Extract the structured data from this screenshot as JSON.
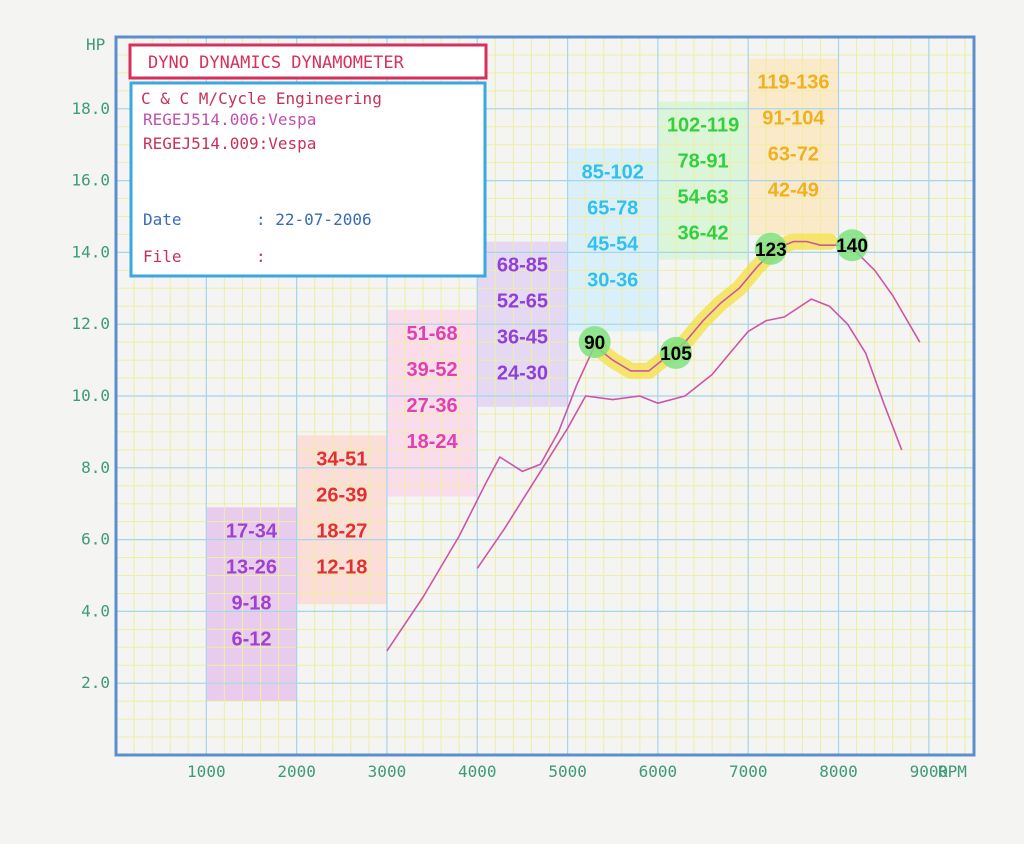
{
  "chart_data": {
    "type": "line",
    "title": "DYNO DYNAMICS DYNAMOMETER",
    "xlabel": "RPM",
    "ylabel": "HP",
    "xlim": [
      0,
      9500
    ],
    "ylim": [
      0,
      20
    ],
    "x_ticks": [
      "1000",
      "2000",
      "3000",
      "4000",
      "5000",
      "6000",
      "7000",
      "8000",
      "9000"
    ],
    "y_ticks": [
      "2.0",
      "4.0",
      "6.0",
      "8.0",
      "10.0",
      "12.0",
      "14.0",
      "16.0",
      "18.0"
    ],
    "grid": true,
    "series": [
      {
        "color": "#cc55aa",
        "x": [
          3000,
          3400,
          3800,
          4100,
          4250,
          4500,
          4700,
          4900,
          5100,
          5300,
          5500,
          5700,
          5900,
          6100,
          6300,
          6500,
          6700,
          6900,
          7100,
          7300,
          7500,
          7650,
          7800,
          8000,
          8200,
          8400,
          8600,
          8900
        ],
        "values": [
          2.9,
          4.4,
          6.1,
          7.6,
          8.3,
          7.9,
          8.1,
          9.0,
          10.3,
          11.4,
          11.0,
          10.7,
          10.7,
          11.1,
          11.5,
          12.1,
          12.6,
          13.0,
          13.6,
          14.1,
          14.3,
          14.3,
          14.2,
          14.2,
          14.0,
          13.5,
          12.8,
          11.5
        ]
      },
      {
        "color": "#cc55aa",
        "x": [
          4000,
          4300,
          4700,
          5000,
          5200,
          5500,
          5800,
          6000,
          6300,
          6600,
          6800,
          7000,
          7200,
          7400,
          7700,
          7900,
          8100,
          8300,
          8500,
          8700
        ],
        "values": [
          5.2,
          6.3,
          7.9,
          9.1,
          10.0,
          9.9,
          10.0,
          9.8,
          10.0,
          10.6,
          11.2,
          11.8,
          12.1,
          12.2,
          12.7,
          12.5,
          12.0,
          11.2,
          9.8,
          8.5
        ]
      }
    ],
    "highlight": {
      "color": "#f5e040",
      "x": [
        5300,
        5500,
        5700,
        5900,
        6100,
        6300,
        6500,
        6700,
        6900,
        7100,
        7300,
        7500,
        7700,
        7900
      ],
      "values": [
        11.4,
        11.0,
        10.7,
        10.7,
        11.1,
        11.5,
        12.1,
        12.6,
        13.0,
        13.6,
        14.1,
        14.3,
        14.3,
        14.3
      ]
    },
    "markers": [
      {
        "label": "90",
        "x": 5300,
        "y": 11.5,
        "color": "#7fe07f"
      },
      {
        "label": "105",
        "x": 6200,
        "y": 11.2,
        "color": "#7fe07f"
      },
      {
        "label": "123",
        "x": 7250,
        "y": 14.1,
        "color": "#7fe07f"
      },
      {
        "label": "140",
        "x": 8150,
        "y": 14.2,
        "color": "#7fe07f"
      }
    ],
    "bands": [
      {
        "x0": 1000,
        "x1": 2000,
        "y0": 1.5,
        "y1": 6.9,
        "fill": "#e6c4ec",
        "text_color": "#a040d0",
        "lines": [
          "17-34",
          "13-26",
          "9-18",
          "6-12"
        ]
      },
      {
        "x0": 2000,
        "x1": 3000,
        "y0": 4.2,
        "y1": 8.9,
        "fill": "#fbd9d2",
        "text_color": "#e03030",
        "lines": [
          "34-51",
          "26-39",
          "18-27",
          "12-18"
        ]
      },
      {
        "x0": 3000,
        "x1": 4000,
        "y0": 7.2,
        "y1": 12.4,
        "fill": "#fbd7ea",
        "text_color": "#e040b0",
        "lines": [
          "51-68",
          "39-52",
          "27-36",
          "18-24"
        ]
      },
      {
        "x0": 4000,
        "x1": 5000,
        "y0": 9.7,
        "y1": 14.3,
        "fill": "#e0d2f2",
        "text_color": "#9040d8",
        "lines": [
          "68-85",
          "52-65",
          "36-45",
          "24-30"
        ]
      },
      {
        "x0": 5000,
        "x1": 6000,
        "y0": 11.8,
        "y1": 16.9,
        "fill": "#d4effb",
        "text_color": "#30c0f0",
        "lines": [
          "85-102",
          "65-78",
          "45-54",
          "30-36"
        ]
      },
      {
        "x0": 6000,
        "x1": 7000,
        "y0": 13.8,
        "y1": 18.2,
        "fill": "#d6f5d4",
        "text_color": "#30d040",
        "lines": [
          "102-119",
          "78-91",
          "54-63",
          "36-42"
        ]
      },
      {
        "x0": 7000,
        "x1": 8000,
        "y0": 14.5,
        "y1": 19.4,
        "fill": "#fbe7c2",
        "text_color": "#f0b020",
        "lines": [
          "119-136",
          "91-104",
          "63-72",
          "42-49"
        ]
      }
    ]
  },
  "info_box": {
    "line1": "C & C M/Cycle Engineering",
    "run1": "REGEJ514.006:Vespa",
    "run2": "REGEJ514.009:Vespa",
    "date_label": "Date",
    "date_value": ": 22-07-2006",
    "file_label": "File",
    "file_value": ":"
  },
  "colors": {
    "frame": "#5b8fcc",
    "minor_grid": "#eeeea4",
    "major_grid": "#a8d4f0",
    "axis_text": "#3f9a78",
    "title_red": "#d8305a",
    "info_border": "#3aa8e0",
    "info_text_red": "#c8305a",
    "info_text_magenta": "#c050b0",
    "info_text_blue": "#3a6ab8"
  }
}
